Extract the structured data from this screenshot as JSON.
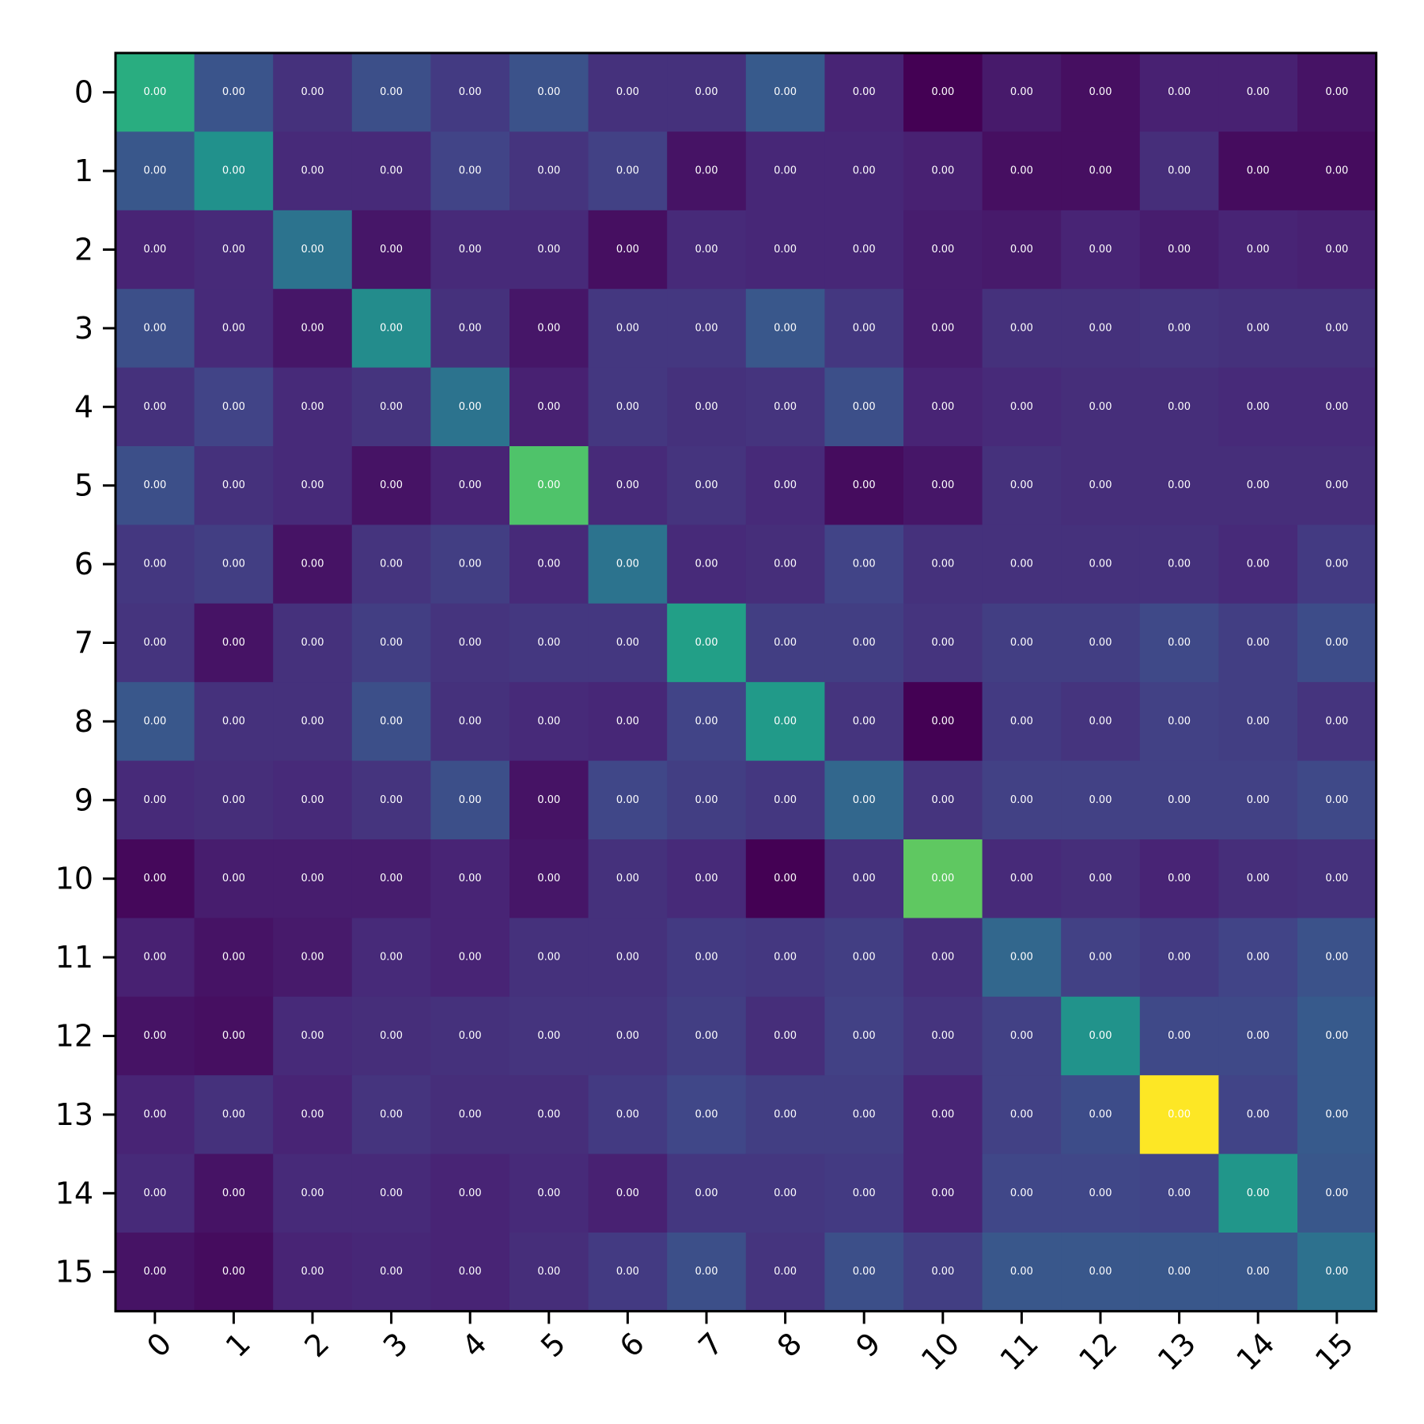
{
  "chart_data": {
    "type": "heatmap",
    "title": "",
    "xlabel": "",
    "ylabel": "",
    "x_categories": [
      "0",
      "1",
      "2",
      "3",
      "4",
      "5",
      "6",
      "7",
      "8",
      "9",
      "10",
      "11",
      "12",
      "13",
      "14",
      "15"
    ],
    "y_categories": [
      "0",
      "1",
      "2",
      "3",
      "4",
      "5",
      "6",
      "7",
      "8",
      "9",
      "10",
      "11",
      "12",
      "13",
      "14",
      "15"
    ],
    "colormap": "viridis",
    "cell_text_format": "0.00",
    "cell_text_color": "#ffffff",
    "value_range": [
      0,
      1
    ],
    "values": [
      [
        0.62,
        0.26,
        0.14,
        0.24,
        0.17,
        0.25,
        0.14,
        0.14,
        0.28,
        0.1,
        0.0,
        0.07,
        0.04,
        0.09,
        0.09,
        0.05
      ],
      [
        0.27,
        0.5,
        0.12,
        0.12,
        0.2,
        0.15,
        0.19,
        0.05,
        0.11,
        0.11,
        0.09,
        0.04,
        0.04,
        0.13,
        0.03,
        0.03
      ],
      [
        0.1,
        0.12,
        0.38,
        0.06,
        0.12,
        0.12,
        0.04,
        0.12,
        0.11,
        0.11,
        0.08,
        0.07,
        0.1,
        0.08,
        0.1,
        0.09
      ],
      [
        0.24,
        0.12,
        0.06,
        0.48,
        0.14,
        0.06,
        0.16,
        0.16,
        0.27,
        0.16,
        0.08,
        0.14,
        0.14,
        0.15,
        0.14,
        0.14
      ],
      [
        0.14,
        0.2,
        0.12,
        0.15,
        0.38,
        0.09,
        0.16,
        0.14,
        0.15,
        0.24,
        0.1,
        0.12,
        0.13,
        0.13,
        0.12,
        0.12
      ],
      [
        0.24,
        0.14,
        0.12,
        0.05,
        0.1,
        0.72,
        0.12,
        0.15,
        0.12,
        0.03,
        0.06,
        0.14,
        0.13,
        0.13,
        0.13,
        0.13
      ],
      [
        0.16,
        0.18,
        0.05,
        0.15,
        0.18,
        0.12,
        0.38,
        0.12,
        0.13,
        0.2,
        0.14,
        0.14,
        0.14,
        0.14,
        0.12,
        0.17
      ],
      [
        0.15,
        0.05,
        0.14,
        0.18,
        0.15,
        0.16,
        0.16,
        0.56,
        0.18,
        0.18,
        0.15,
        0.18,
        0.18,
        0.22,
        0.18,
        0.23
      ],
      [
        0.27,
        0.14,
        0.14,
        0.24,
        0.14,
        0.12,
        0.11,
        0.2,
        0.54,
        0.15,
        0.0,
        0.17,
        0.15,
        0.19,
        0.18,
        0.15
      ],
      [
        0.12,
        0.13,
        0.12,
        0.15,
        0.24,
        0.05,
        0.21,
        0.18,
        0.16,
        0.33,
        0.15,
        0.19,
        0.19,
        0.19,
        0.19,
        0.22
      ],
      [
        0.02,
        0.08,
        0.08,
        0.08,
        0.1,
        0.06,
        0.14,
        0.12,
        0.0,
        0.14,
        0.75,
        0.12,
        0.13,
        0.1,
        0.13,
        0.14
      ],
      [
        0.09,
        0.05,
        0.07,
        0.12,
        0.1,
        0.14,
        0.14,
        0.17,
        0.16,
        0.18,
        0.13,
        0.33,
        0.19,
        0.17,
        0.2,
        0.25
      ],
      [
        0.05,
        0.04,
        0.12,
        0.13,
        0.14,
        0.15,
        0.15,
        0.18,
        0.13,
        0.19,
        0.15,
        0.19,
        0.51,
        0.22,
        0.22,
        0.28
      ],
      [
        0.1,
        0.14,
        0.1,
        0.15,
        0.13,
        0.13,
        0.17,
        0.21,
        0.18,
        0.18,
        0.1,
        0.19,
        0.23,
        1.0,
        0.2,
        0.28
      ],
      [
        0.12,
        0.05,
        0.12,
        0.12,
        0.1,
        0.12,
        0.09,
        0.16,
        0.16,
        0.17,
        0.1,
        0.21,
        0.21,
        0.2,
        0.52,
        0.27
      ],
      [
        0.05,
        0.03,
        0.1,
        0.11,
        0.1,
        0.13,
        0.17,
        0.24,
        0.15,
        0.24,
        0.18,
        0.27,
        0.27,
        0.27,
        0.27,
        0.37
      ]
    ]
  }
}
